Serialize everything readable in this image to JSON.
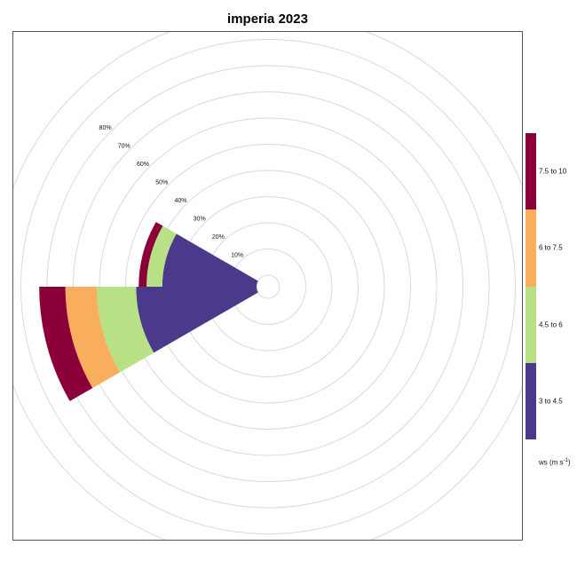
{
  "chart_data": {
    "type": "polar-bar",
    "title": "imperia 2023",
    "radial_ticks": [
      10,
      20,
      30,
      40,
      50,
      60,
      70,
      80
    ],
    "radial_tick_suffix": "%",
    "radial_max": 90,
    "bin_width_deg": 30,
    "grid": true,
    "legend": {
      "title_main": "ws (m s",
      "title_sup": "-1",
      "title_end": ")",
      "position": "right",
      "bins": [
        {
          "label": "3 to 4.5",
          "color": "#4B3A8C"
        },
        {
          "label": "4.5 to 6",
          "color": "#B8E186"
        },
        {
          "label": "6 to 7.5",
          "color": "#F8AE5D"
        },
        {
          "label": "7.5 to 10",
          "color": "#8B0038"
        }
      ]
    },
    "sectors": [
      {
        "direction_deg": 285,
        "cumulative": [
          36,
          42,
          42,
          45
        ]
      },
      {
        "direction_deg": 255,
        "cumulative": [
          46,
          61,
          73,
          83
        ]
      }
    ]
  }
}
